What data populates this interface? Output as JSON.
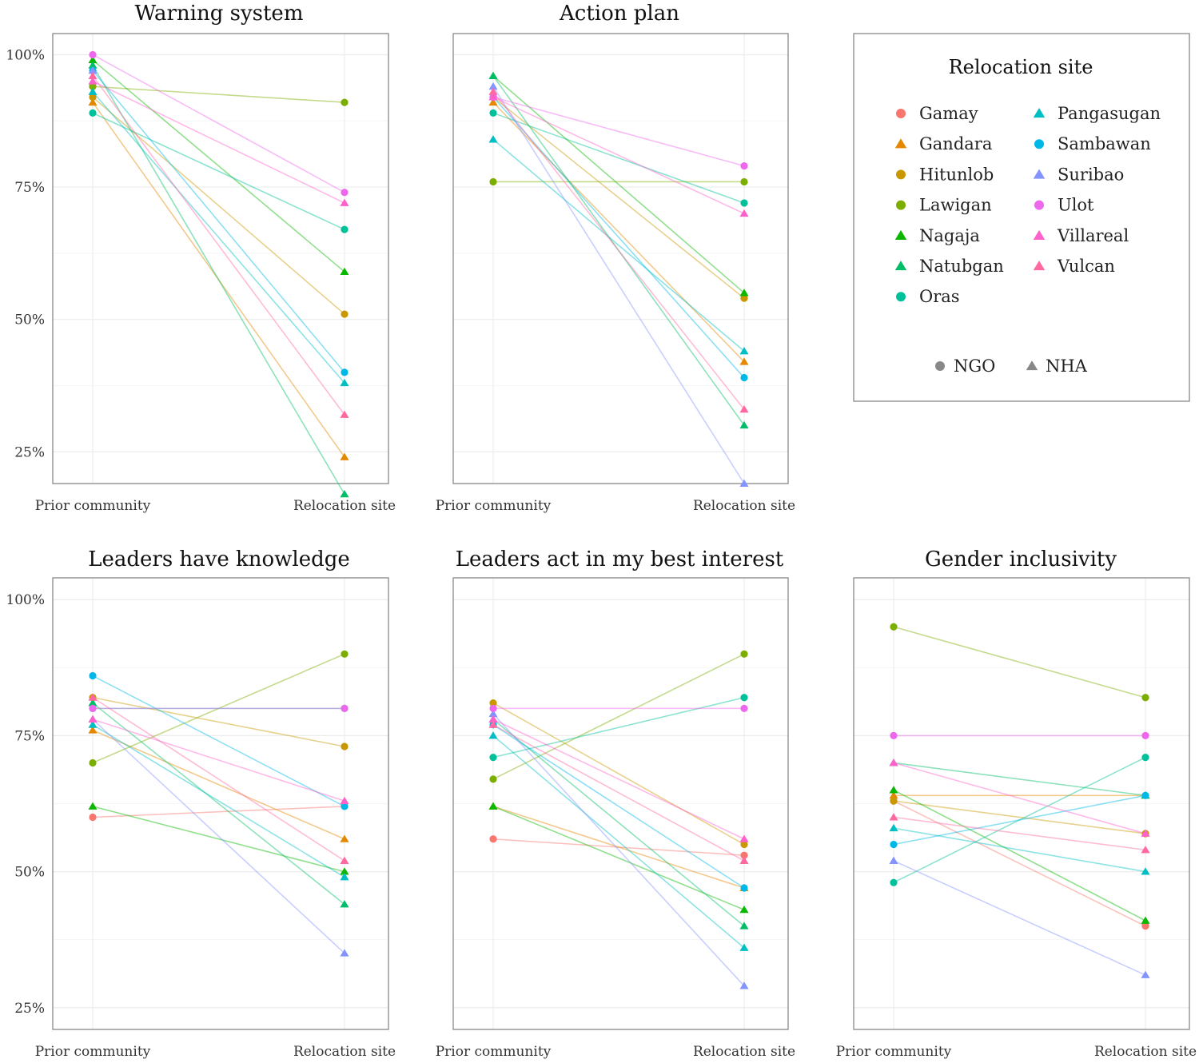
{
  "chart_data": {
    "type": "line",
    "x_categories": [
      "Prior community",
      "Relocation site"
    ],
    "y_ticks": [
      "25%",
      "50%",
      "75%",
      "100%"
    ],
    "legend": {
      "title": "Relocation site",
      "sites": [
        {
          "name": "Gamay",
          "color": "#F8766D",
          "org": "NGO"
        },
        {
          "name": "Gandara",
          "color": "#E58700",
          "org": "NHA"
        },
        {
          "name": "Hitunlob",
          "color": "#C99800",
          "org": "NGO"
        },
        {
          "name": "Lawigan",
          "color": "#7CAE00",
          "org": "NGO"
        },
        {
          "name": "Nagaja",
          "color": "#0CB702",
          "org": "NHA"
        },
        {
          "name": "Natubgan",
          "color": "#00BE67",
          "org": "NHA"
        },
        {
          "name": "Oras",
          "color": "#00C19A",
          "org": "NGO"
        },
        {
          "name": "Pangasugan",
          "color": "#00BFC4",
          "org": "NHA"
        },
        {
          "name": "Sambawan",
          "color": "#00B8E7",
          "org": "NGO"
        },
        {
          "name": "Suribao",
          "color": "#8494FF",
          "org": "NHA"
        },
        {
          "name": "Ulot",
          "color": "#ED68ED",
          "org": "NGO"
        },
        {
          "name": "Villareal",
          "color": "#FF61CC",
          "org": "NHA"
        },
        {
          "name": "Vulcan",
          "color": "#FF68A1",
          "org": "NHA"
        }
      ],
      "org_types": [
        {
          "label": "NGO",
          "shape": "circle"
        },
        {
          "label": "NHA",
          "shape": "triangle"
        }
      ]
    },
    "panels": [
      {
        "title": "Warning system",
        "ylim": [
          19,
          104
        ],
        "series": [
          {
            "site": "Gamay",
            "values": [
              94,
              null
            ]
          },
          {
            "site": "Gandara",
            "values": [
              91,
              24
            ]
          },
          {
            "site": "Hitunlob",
            "values": [
              92,
              51
            ]
          },
          {
            "site": "Lawigan",
            "values": [
              94,
              91
            ]
          },
          {
            "site": "Nagaja",
            "values": [
              99,
              59
            ]
          },
          {
            "site": "Natubgan",
            "values": [
              98,
              17
            ]
          },
          {
            "site": "Oras",
            "values": [
              89,
              67
            ]
          },
          {
            "site": "Pangasugan",
            "values": [
              93,
              38
            ]
          },
          {
            "site": "Sambawan",
            "values": [
              97,
              40
            ]
          },
          {
            "site": "Suribao",
            "values": [
              97,
              null
            ]
          },
          {
            "site": "Ulot",
            "values": [
              100,
              74
            ]
          },
          {
            "site": "Villareal",
            "values": [
              95,
              72
            ]
          },
          {
            "site": "Vulcan",
            "values": [
              96,
              32
            ]
          }
        ]
      },
      {
        "title": "Action plan",
        "ylim": [
          19,
          104
        ],
        "series": [
          {
            "site": "Gamay",
            "values": [
              92,
              null
            ]
          },
          {
            "site": "Gandara",
            "values": [
              91,
              42
            ]
          },
          {
            "site": "Hitunlob",
            "values": [
              92,
              54
            ]
          },
          {
            "site": "Lawigan",
            "values": [
              76,
              76
            ]
          },
          {
            "site": "Nagaja",
            "values": [
              96,
              55
            ]
          },
          {
            "site": "Natubgan",
            "values": [
              96,
              30
            ]
          },
          {
            "site": "Oras",
            "values": [
              89,
              72
            ]
          },
          {
            "site": "Pangasugan",
            "values": [
              84,
              44
            ]
          },
          {
            "site": "Sambawan",
            "values": [
              92,
              39
            ]
          },
          {
            "site": "Suribao",
            "values": [
              94,
              19
            ]
          },
          {
            "site": "Ulot",
            "values": [
              92,
              79
            ]
          },
          {
            "site": "Villareal",
            "values": [
              92,
              70
            ]
          },
          {
            "site": "Vulcan",
            "values": [
              93,
              33
            ]
          }
        ]
      },
      {
        "title": "Leaders have knowledge",
        "ylim": [
          21,
          104
        ],
        "series": [
          {
            "site": "Gamay",
            "values": [
              60,
              62
            ]
          },
          {
            "site": "Gandara",
            "values": [
              76,
              56
            ]
          },
          {
            "site": "Hitunlob",
            "values": [
              82,
              73
            ]
          },
          {
            "site": "Lawigan",
            "values": [
              70,
              90
            ]
          },
          {
            "site": "Nagaja",
            "values": [
              62,
              50
            ]
          },
          {
            "site": "Natubgan",
            "values": [
              81,
              44
            ]
          },
          {
            "site": "Oras",
            "values": [
              80,
              80
            ]
          },
          {
            "site": "Pangasugan",
            "values": [
              77,
              49
            ]
          },
          {
            "site": "Sambawan",
            "values": [
              86,
              62
            ]
          },
          {
            "site": "Suribao",
            "values": [
              78,
              35
            ]
          },
          {
            "site": "Ulot",
            "values": [
              80,
              80
            ]
          },
          {
            "site": "Villareal",
            "values": [
              78,
              63
            ]
          },
          {
            "site": "Vulcan",
            "values": [
              82,
              52
            ]
          }
        ]
      },
      {
        "title": "Leaders act in my best interest",
        "ylim": [
          21,
          104
        ],
        "series": [
          {
            "site": "Gamay",
            "values": [
              56,
              53
            ]
          },
          {
            "site": "Gandara",
            "values": [
              62,
              47
            ]
          },
          {
            "site": "Hitunlob",
            "values": [
              81,
              55
            ]
          },
          {
            "site": "Lawigan",
            "values": [
              67,
              90
            ]
          },
          {
            "site": "Nagaja",
            "values": [
              62,
              43
            ]
          },
          {
            "site": "Natubgan",
            "values": [
              78,
              40
            ]
          },
          {
            "site": "Oras",
            "values": [
              71,
              82
            ]
          },
          {
            "site": "Pangasugan",
            "values": [
              75,
              36
            ]
          },
          {
            "site": "Sambawan",
            "values": [
              77,
              47
            ]
          },
          {
            "site": "Suribao",
            "values": [
              79,
              29
            ]
          },
          {
            "site": "Ulot",
            "values": [
              80,
              80
            ]
          },
          {
            "site": "Villareal",
            "values": [
              78,
              56
            ]
          },
          {
            "site": "Vulcan",
            "values": [
              77,
              52
            ]
          }
        ]
      },
      {
        "title": "Gender inclusivity",
        "ylim": [
          21,
          104
        ],
        "series": [
          {
            "site": "Gamay",
            "values": [
              63,
              40
            ]
          },
          {
            "site": "Gandara",
            "values": [
              64,
              64
            ]
          },
          {
            "site": "Hitunlob",
            "values": [
              63,
              57
            ]
          },
          {
            "site": "Lawigan",
            "values": [
              95,
              82
            ]
          },
          {
            "site": "Nagaja",
            "values": [
              65,
              41
            ]
          },
          {
            "site": "Natubgan",
            "values": [
              70,
              64
            ]
          },
          {
            "site": "Oras",
            "values": [
              48,
              71
            ]
          },
          {
            "site": "Pangasugan",
            "values": [
              58,
              50
            ]
          },
          {
            "site": "Sambawan",
            "values": [
              55,
              64
            ]
          },
          {
            "site": "Suribao",
            "values": [
              52,
              31
            ]
          },
          {
            "site": "Ulot",
            "values": [
              75,
              75
            ]
          },
          {
            "site": "Villareal",
            "values": [
              70,
              57
            ]
          },
          {
            "site": "Vulcan",
            "values": [
              60,
              54
            ]
          }
        ]
      }
    ]
  }
}
